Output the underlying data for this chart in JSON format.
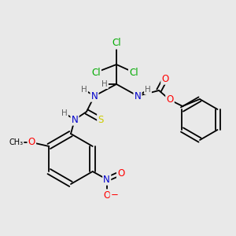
{
  "bg_color": "#e9e9e9",
  "C": "#000000",
  "H": "#606060",
  "Cl": "#00aa00",
  "O": "#ff0000",
  "N": "#0000cc",
  "S": "#cccc00",
  "bond": "#000000",
  "lw": 1.3,
  "fs": 8.5
}
